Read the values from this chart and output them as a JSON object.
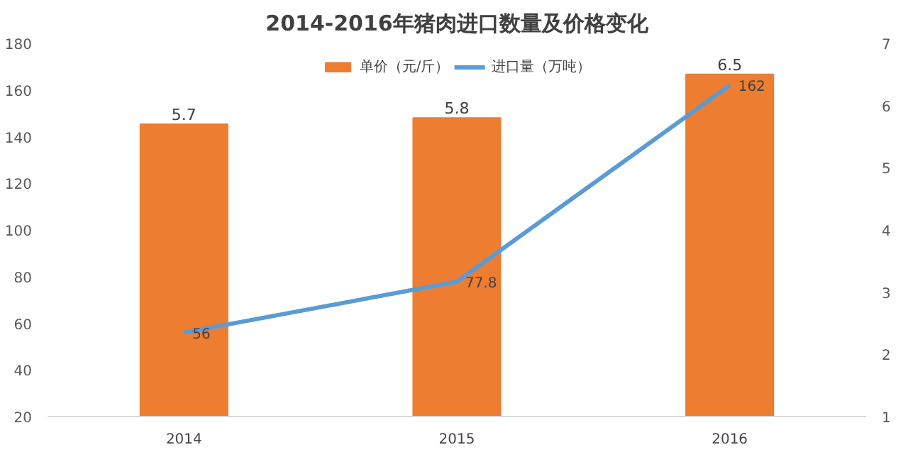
{
  "chart_data": {
    "type": "bar",
    "title": "2014-2016年猪肉进口数量及价格变化",
    "categories": [
      "2014",
      "2015",
      "2016"
    ],
    "series": [
      {
        "name": "单价（元/斤）",
        "axis": "y2",
        "color": "#ed7d31",
        "values": [
          5.7,
          5.8,
          6.5
        ]
      },
      {
        "name": "进口量（万吨）",
        "type": "line",
        "color": "#5b9bd5",
        "values": [
          56,
          77.8,
          162
        ]
      }
    ],
    "ylim": [
      20,
      180
    ],
    "yticks": [
      20,
      40,
      60,
      80,
      100,
      120,
      140,
      160,
      180
    ],
    "y2lim": [
      1,
      7
    ],
    "y2ticks": [
      1,
      2,
      3,
      4,
      5,
      6,
      7
    ],
    "data_labels": true,
    "legend": "top",
    "grid": false
  }
}
